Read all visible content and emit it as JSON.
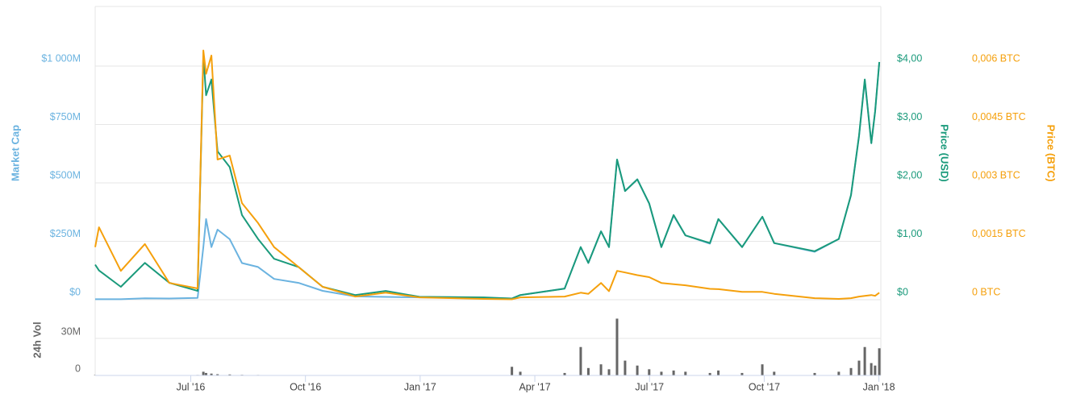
{
  "chart_data": [
    {
      "type": "line",
      "y_title": "Market Cap",
      "y2_title": "Price (USD)",
      "y3_title": "Price (BTC)",
      "x": [
        3.5,
        3.6,
        4.17,
        4.8,
        5.44,
        6.18,
        6.33,
        6.4,
        6.54,
        6.7,
        7.02,
        7.34,
        7.76,
        8.18,
        8.82,
        9.45,
        10.3,
        11.1,
        11.98,
        13.67,
        14.4,
        14.62,
        15.78,
        16.2,
        16.4,
        16.73,
        16.94,
        17.15,
        17.36,
        17.68,
        17.99,
        18.31,
        18.63,
        18.94,
        19.58,
        19.8,
        20.42,
        20.95,
        21.26,
        22.32,
        22.95,
        23.27,
        23.48,
        23.63,
        23.8,
        23.9,
        24.01
      ],
      "ylim": [
        0,
        1255
      ],
      "y2lim": [
        0,
        5.02
      ],
      "y3lim": [
        0,
        0.00753
      ],
      "yticks": [
        {
          "value": 0,
          "label": "$0"
        },
        {
          "value": 250,
          "label": "$250M"
        },
        {
          "value": 500,
          "label": "$500M"
        },
        {
          "value": 750,
          "label": "$750M"
        },
        {
          "value": 1000,
          "label": "$1 000M"
        }
      ],
      "y2ticks": [
        {
          "value": 0,
          "label": "$0"
        },
        {
          "value": 1,
          "label": "$1,00"
        },
        {
          "value": 2,
          "label": "$2,00"
        },
        {
          "value": 3,
          "label": "$3,00"
        },
        {
          "value": 4,
          "label": "$4,00"
        }
      ],
      "y3ticks": [
        {
          "value": 0,
          "label": "0 BTC"
        },
        {
          "value": 0.0015,
          "label": "0,0015 BTC"
        },
        {
          "value": 0.003,
          "label": "0,003 BTC"
        },
        {
          "value": 0.0045,
          "label": "0,0045 BTC"
        },
        {
          "value": 0.006,
          "label": "0,006 BTC"
        }
      ],
      "grid": true,
      "series": [
        {
          "name": "Market Cap",
          "color": "#6bb3e0",
          "axis": "y",
          "values": [
            2,
            2,
            2,
            6,
            5,
            8,
            225,
            345,
            225,
            300,
            259,
            157,
            140,
            89,
            72,
            38,
            14,
            12,
            10,
            8,
            5,
            20,
            48,
            225,
            157,
            293,
            225,
            600,
            465,
            515,
            412,
            225,
            360,
            275,
            240,
            345,
            225,
            355,
            242,
            205,
            260,
            447,
            700,
            940,
            670,
            805,
            1015
          ]
        },
        {
          "name": "Price (USD)",
          "color": "#1a9a7b",
          "axis": "y2",
          "values": [
            0.6,
            0.5,
            0.22,
            0.63,
            0.29,
            0.15,
            4.18,
            3.5,
            3.77,
            2.54,
            2.27,
            1.45,
            1.04,
            0.7,
            0.56,
            0.22,
            0.08,
            0.15,
            0.05,
            0.04,
            0.02,
            0.08,
            0.19,
            0.9,
            0.63,
            1.17,
            0.9,
            2.4,
            1.86,
            2.06,
            1.65,
            0.9,
            1.45,
            1.1,
            0.97,
            1.38,
            0.9,
            1.42,
            0.97,
            0.83,
            1.04,
            1.79,
            2.81,
            3.77,
            2.68,
            3.22,
            4.07
          ]
        },
        {
          "name": "Price (BTC)",
          "color": "#f5a00c",
          "axis": "y3",
          "values": [
            0.00135,
            0.00186,
            0.00074,
            0.00143,
            0.00043,
            0.00029,
            0.0064,
            0.0058,
            0.00627,
            0.0036,
            0.0037,
            0.00248,
            0.00197,
            0.00135,
            0.00084,
            0.00033,
            8e-05,
            0.00018,
            6e-05,
            2e-05,
            1e-05,
            6e-05,
            8e-05,
            0.00018,
            0.00015,
            0.00043,
            0.00022,
            0.00074,
            0.0007,
            0.00063,
            0.00058,
            0.00043,
            0.0004,
            0.00037,
            0.00028,
            0.00027,
            0.0002,
            0.0002,
            0.00015,
            4e-05,
            2e-05,
            4e-05,
            8e-05,
            0.0001,
            0.00012,
            0.0001,
            0.00018
          ]
        }
      ]
    },
    {
      "type": "bar",
      "y_title": "24h Vol",
      "color": "#666666",
      "x": [
        3.5,
        3.6,
        4.17,
        4.8,
        5.44,
        6.18,
        6.33,
        6.4,
        6.54,
        6.7,
        7.02,
        7.34,
        7.76,
        8.18,
        8.82,
        9.45,
        10.3,
        11.1,
        11.98,
        13.67,
        14.4,
        14.62,
        15.78,
        16.2,
        16.4,
        16.73,
        16.94,
        17.15,
        17.36,
        17.68,
        17.99,
        18.31,
        18.63,
        18.94,
        19.58,
        19.8,
        20.42,
        20.95,
        21.26,
        22.32,
        22.95,
        23.27,
        23.48,
        23.63,
        23.8,
        23.9,
        24.01
      ],
      "values": [
        0.3,
        0.3,
        0.2,
        0.3,
        0.2,
        0.4,
        3,
        2,
        1.5,
        1,
        0.8,
        0.5,
        0.4,
        0.3,
        0.3,
        0.2,
        0.2,
        0.2,
        0.1,
        0.1,
        7,
        3,
        2,
        23,
        6,
        9,
        5,
        46,
        12,
        8,
        5,
        3,
        4,
        3,
        2,
        4,
        2,
        9,
        3,
        2,
        3,
        6,
        12,
        23,
        10,
        8,
        22
      ],
      "xlim": [
        3.5,
        24.05
      ],
      "ylim": [
        0,
        57.4
      ],
      "xticks": [
        {
          "value": 6,
          "label": "Jul '16"
        },
        {
          "value": 9,
          "label": "Oct '16"
        },
        {
          "value": 12,
          "label": "Jan '17"
        },
        {
          "value": 15,
          "label": "Apr '17"
        },
        {
          "value": 18,
          "label": "Jul '17"
        },
        {
          "value": 21,
          "label": "Oct '17"
        },
        {
          "value": 24,
          "label": "Jan '18"
        }
      ],
      "yticks": [
        0,
        {
          "value": 30,
          "label": "30M"
        }
      ]
    }
  ]
}
